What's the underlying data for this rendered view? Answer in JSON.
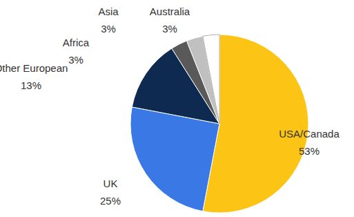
{
  "chart_data": {
    "type": "pie",
    "categories": [
      "USA/Canada",
      "UK",
      "Other European",
      "Africa",
      "Asia",
      "Australia"
    ],
    "values": [
      53,
      25,
      13,
      3,
      3,
      3
    ],
    "value_labels": [
      "53%",
      "25%",
      "13%",
      "3%",
      "3%",
      "3%"
    ],
    "colors": [
      "#fcc414",
      "#3a78e6",
      "#0f2a50",
      "#595959",
      "#c0c0c0",
      "#ffffff"
    ],
    "data_labels": true
  }
}
